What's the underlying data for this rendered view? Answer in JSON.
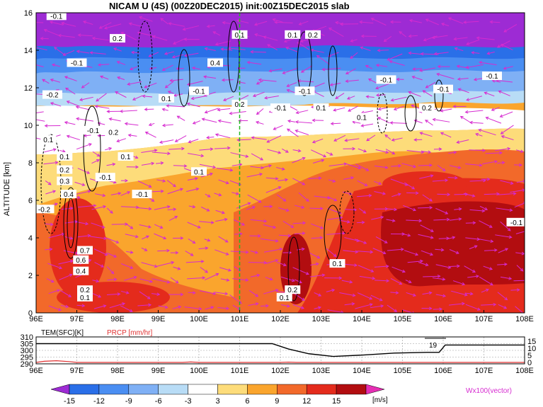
{
  "chart_data": {
    "type": "heatmap",
    "title": "NICAM U (4S) (00Z20DEC2015) init:00Z15DEC2015 slab",
    "main": {
      "ylabel": "ALTITUDE [km]",
      "xlim": [
        96,
        108
      ],
      "ylim": [
        0,
        16
      ],
      "x_ticks": [
        "96E",
        "97E",
        "98E",
        "99E",
        "100E",
        "101E",
        "102E",
        "103E",
        "104E",
        "105E",
        "106E",
        "107E",
        "108E"
      ],
      "y_ticks": [
        "0",
        "2",
        "4",
        "6",
        "8",
        "10",
        "12",
        "14",
        "16"
      ],
      "x_tick_values": [
        96,
        97,
        98,
        99,
        100,
        101,
        102,
        103,
        104,
        105,
        106,
        107,
        108
      ],
      "y_tick_values": [
        0,
        2,
        4,
        6,
        8,
        10,
        12,
        14,
        16
      ],
      "marker_longitude": 101,
      "contour_labels": [
        {
          "text": "-0.1",
          "x": 96.5,
          "y": 15.8
        },
        {
          "text": "0.2",
          "x": 98.0,
          "y": 14.6
        },
        {
          "text": "0.1",
          "x": 101.0,
          "y": 14.8
        },
        {
          "text": "0.1",
          "x": 102.3,
          "y": 14.8
        },
        {
          "text": "0.2",
          "x": 102.8,
          "y": 14.8
        },
        {
          "text": "-0.1",
          "x": 97.0,
          "y": 13.3
        },
        {
          "text": "0.4",
          "x": 100.4,
          "y": 13.3
        },
        {
          "text": "-0.1",
          "x": 104.6,
          "y": 12.4
        },
        {
          "text": "-0.1",
          "x": 107.2,
          "y": 12.6
        },
        {
          "text": "-0.1",
          "x": 102.6,
          "y": 11.8
        },
        {
          "text": "-0.1",
          "x": 106.0,
          "y": 11.9
        },
        {
          "text": "-0.2",
          "x": 96.4,
          "y": 11.6
        },
        {
          "text": "0.1",
          "x": 99.2,
          "y": 11.4
        },
        {
          "text": "-0.1",
          "x": 100.0,
          "y": 11.8
        },
        {
          "text": "0.2",
          "x": 101.0,
          "y": 11.1
        },
        {
          "text": "-0.1",
          "x": 102.0,
          "y": 10.9
        },
        {
          "text": "0.1",
          "x": 103.0,
          "y": 10.9
        },
        {
          "text": "0.2",
          "x": 105.6,
          "y": 10.9
        },
        {
          "text": "0.1",
          "x": 104.0,
          "y": 10.4
        },
        {
          "text": "-0.1",
          "x": 97.4,
          "y": 9.7
        },
        {
          "text": "0.1",
          "x": 96.3,
          "y": 9.2
        },
        {
          "text": "0.2",
          "x": 97.9,
          "y": 9.6
        },
        {
          "text": "0.1",
          "x": 98.2,
          "y": 8.3
        },
        {
          "text": "0.1",
          "x": 96.7,
          "y": 8.3
        },
        {
          "text": "0.2",
          "x": 96.7,
          "y": 7.6
        },
        {
          "text": "0.3",
          "x": 96.7,
          "y": 7.0
        },
        {
          "text": "-0.1",
          "x": 97.7,
          "y": 7.2
        },
        {
          "text": "0.1",
          "x": 100.0,
          "y": 7.5
        },
        {
          "text": "0.4",
          "x": 96.8,
          "y": 6.3
        },
        {
          "text": "-0.1",
          "x": 98.6,
          "y": 6.3
        },
        {
          "text": "-0.2",
          "x": 96.2,
          "y": 5.5
        },
        {
          "text": "-0.1",
          "x": 107.8,
          "y": 4.8
        },
        {
          "text": "0.7",
          "x": 97.2,
          "y": 3.3
        },
        {
          "text": "0.6",
          "x": 97.1,
          "y": 2.8
        },
        {
          "text": "0.4",
          "x": 97.1,
          "y": 2.2
        },
        {
          "text": "0.1",
          "x": 103.4,
          "y": 2.6
        },
        {
          "text": "0.2",
          "x": 97.2,
          "y": 1.2
        },
        {
          "text": "0.1",
          "x": 97.2,
          "y": 0.8
        },
        {
          "text": "0.2",
          "x": 102.3,
          "y": 1.2
        },
        {
          "text": "0.1",
          "x": 102.1,
          "y": 0.8
        }
      ]
    },
    "sub": {
      "left_label": "TEM(SFC)[K]",
      "right_label": "PRCP [mm/hr]",
      "left_ticks": [
        "310",
        "305",
        "300",
        "295",
        "290"
      ],
      "left_tick_values": [
        310,
        305,
        300,
        295,
        290
      ],
      "right_ticks": [
        "15",
        "10",
        "5",
        "0"
      ],
      "right_tick_values": [
        15,
        10,
        5,
        0
      ],
      "x_ticks": [
        "96E",
        "97E",
        "98E",
        "99E",
        "100E",
        "101E",
        "102E",
        "103E",
        "104E",
        "105E",
        "106E",
        "107E",
        "108E"
      ],
      "annotation": "19",
      "temperature": [
        [
          96,
          305
        ],
        [
          97,
          305
        ],
        [
          98,
          305
        ],
        [
          99,
          305
        ],
        [
          100,
          305
        ],
        [
          101,
          305
        ],
        [
          101.8,
          305
        ],
        [
          102.2,
          301
        ],
        [
          102.7,
          297.5
        ],
        [
          103.3,
          295.5
        ],
        [
          104,
          296.5
        ],
        [
          104.8,
          298
        ],
        [
          105.6,
          298.5
        ],
        [
          105.9,
          298.5
        ],
        [
          106.05,
          304
        ],
        [
          106.5,
          304
        ],
        [
          107,
          304
        ],
        [
          108,
          304
        ]
      ],
      "precipitation": [
        [
          96,
          0
        ],
        [
          96.2,
          0.8
        ],
        [
          96.5,
          1.2
        ],
        [
          96.8,
          0.6
        ],
        [
          97,
          0
        ],
        [
          98,
          0
        ],
        [
          99.6,
          0
        ],
        [
          99.8,
          0.3
        ],
        [
          100,
          0
        ],
        [
          102,
          0
        ],
        [
          102.2,
          0.2
        ],
        [
          102.4,
          0
        ],
        [
          108,
          0
        ]
      ]
    },
    "colorbar": {
      "labels": [
        "-15",
        "-12",
        "-9",
        "-6",
        "-3",
        "3",
        "6",
        "9",
        "12",
        "15"
      ],
      "values": [
        -15,
        -12,
        -9,
        -6,
        -3,
        3,
        6,
        9,
        12,
        15
      ],
      "colors": [
        "#9d2bd4",
        "#2a6fe8",
        "#4a8ef2",
        "#7fb0f5",
        "#b8dcf6",
        "#ffffff",
        "#fddc7a",
        "#faa52d",
        "#f2692a",
        "#e42b1c",
        "#b20d10",
        "#e62eb4"
      ],
      "unit": "[m/s]",
      "vector_note": "Wx100(vector)"
    }
  }
}
